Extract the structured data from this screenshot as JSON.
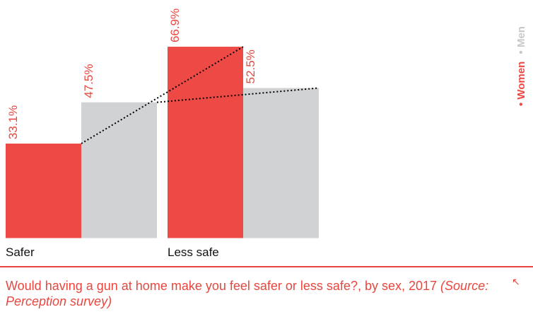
{
  "chart_data": {
    "type": "bar",
    "categories": [
      "Safer",
      "Less safe"
    ],
    "series": [
      {
        "name": "Women",
        "values": [
          33.1,
          66.9
        ],
        "color": "#ee4a45"
      },
      {
        "name": "Men",
        "values": [
          47.5,
          52.5
        ],
        "color": "#d1d2d4"
      }
    ],
    "value_labels": [
      [
        "33.1%",
        "66.9%"
      ],
      [
        "47.5%",
        "52.5%"
      ]
    ],
    "legend": {
      "placement": "right-vertical",
      "items": [
        "Women",
        "Men"
      ],
      "bullet": "•"
    },
    "ylim": [
      0,
      75
    ],
    "grid": false,
    "connector_lines": "dotted lines joining each series' values across categories"
  },
  "caption": {
    "text": "Would having a gun at home make you feel safer or less safe?, by sex, 2017",
    "source": "(Source: Perception survey)"
  },
  "colors": {
    "accent": "#e8473f",
    "gray": "#d1d2d4",
    "men_legend": "#c8c8c8"
  },
  "icons": {
    "expand": "expand-arrow-icon",
    "expand_glyph": "↖"
  }
}
